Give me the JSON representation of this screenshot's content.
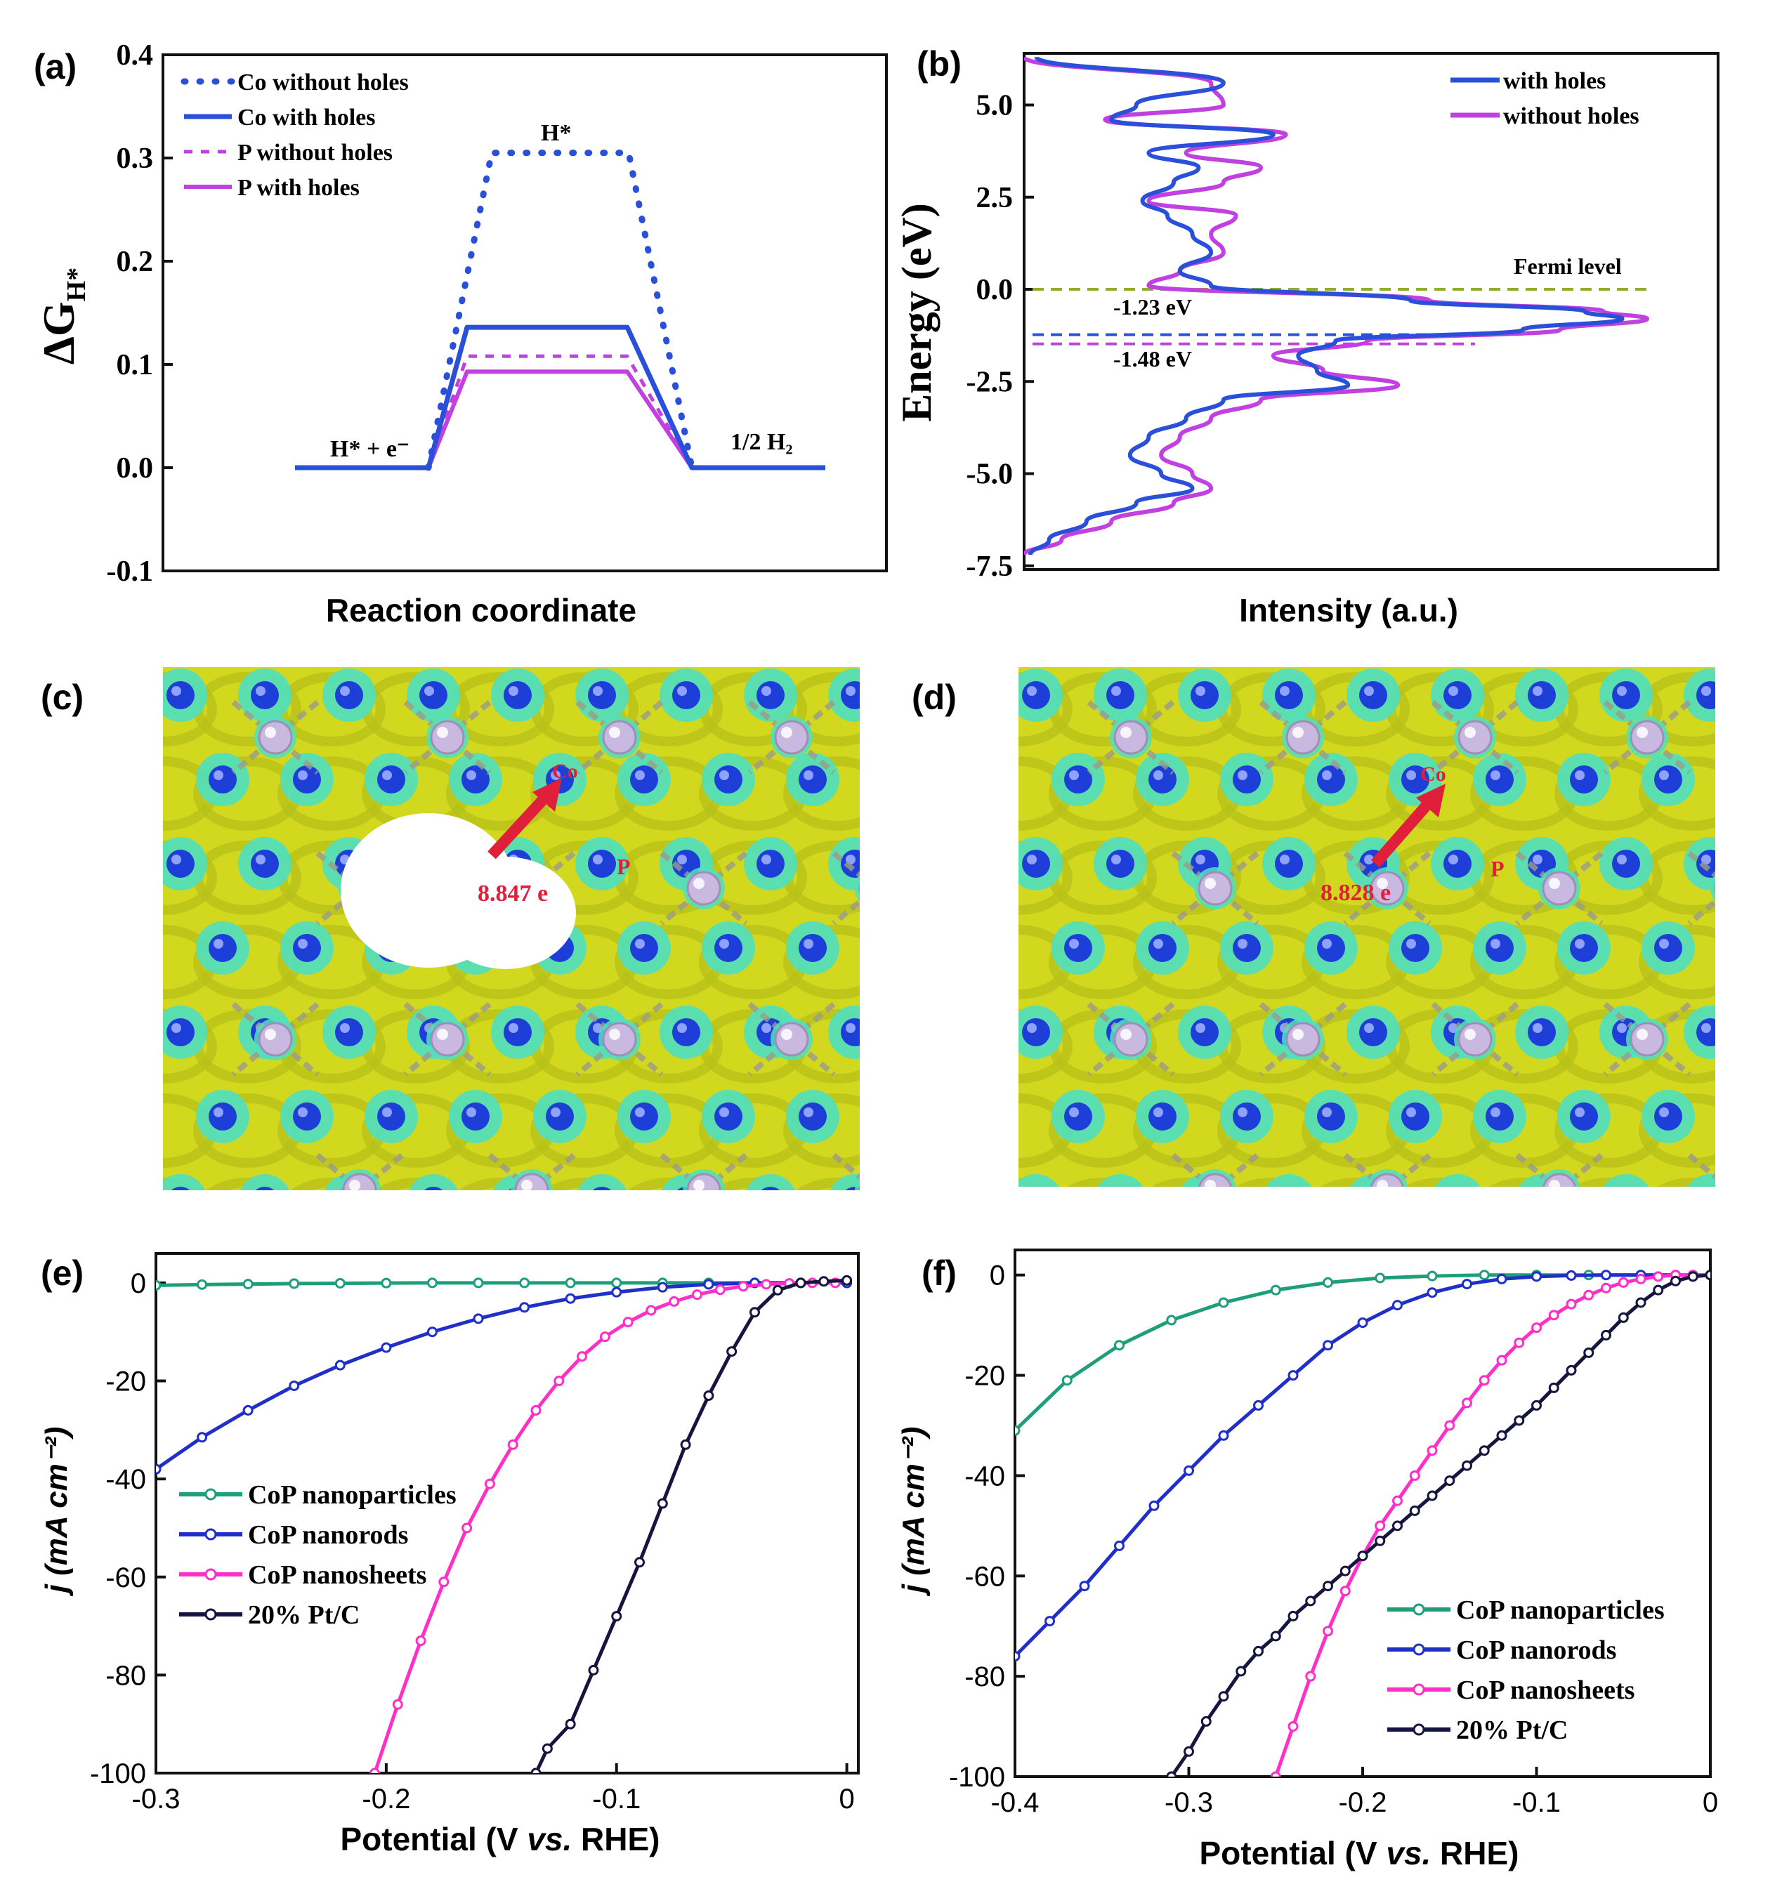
{
  "colors": {
    "co_without": "#2a4fd8",
    "co_with": "#2a4fd8",
    "p_without": "#c040e0",
    "p_with": "#c040e0",
    "dos_with": "#2a4fd8",
    "dos_without": "#c040e0",
    "fermi": "#8fae2c",
    "nanoparticles": "#1f9e7a",
    "nanorods": "#1f2fc8",
    "nanosheets": "#ff2fc8",
    "ptc": "#151540",
    "iso_yellow": "#d2d81e",
    "iso_cyan": "#4fe0c0",
    "atom_blue": "#1e3ed8",
    "atom_p": "#c9b8e0",
    "arrow_red": "#e0203a"
  },
  "chart_data": [
    {
      "panel": "(a)",
      "type": "line",
      "title": "",
      "xlabel": "Reaction coordinate",
      "ylabel_main": "ΔG",
      "ylabel_sub": "H*",
      "ylim": [
        -0.1,
        0.4
      ],
      "yticks": [
        "0.4",
        "0.3",
        "0.2",
        "0.1",
        "0.0",
        "-0.1"
      ],
      "ytick_values": [
        0.4,
        0.3,
        0.2,
        0.1,
        0.0,
        -0.1
      ],
      "stage_labels": [
        "H* + e⁻",
        "H*",
        "1/2 H₂"
      ],
      "series": [
        {
          "name": "Co without holes",
          "style": "dotted",
          "values": [
            0,
            0.305,
            0
          ]
        },
        {
          "name": "Co with holes",
          "style": "solid",
          "values": [
            0,
            0.136,
            0
          ]
        },
        {
          "name": "P without holes",
          "style": "dashed",
          "values": [
            0,
            0.108,
            0
          ]
        },
        {
          "name": "P with holes",
          "style": "solid",
          "values": [
            0,
            0.093,
            0
          ]
        }
      ]
    },
    {
      "panel": "(b)",
      "type": "line",
      "title": "",
      "xlabel": "Intensity (a.u.)",
      "ylabel": "Energy (eV)",
      "ylim": [
        -7.6,
        6.4
      ],
      "yticks": [
        "5.0",
        "2.5",
        "0.0",
        "-2.5",
        "-5.0",
        "-7.5"
      ],
      "ytick_values": [
        5.0,
        2.5,
        0.0,
        -2.5,
        -5.0,
        -7.5
      ],
      "fermi_label": "Fermi level",
      "level_labels": [
        "-1.23 eV",
        "-1.48 eV"
      ],
      "level_values": [
        -1.23,
        -1.48
      ],
      "energy": [
        6.3,
        5.6,
        5.0,
        4.6,
        4.2,
        3.7,
        3.3,
        2.9,
        2.4,
        2.0,
        1.5,
        1.0,
        0.5,
        0.1,
        -0.3,
        -0.6,
        -0.8,
        -1.1,
        -1.4,
        -1.8,
        -2.2,
        -2.6,
        -3.0,
        -3.5,
        -4.0,
        -4.5,
        -5.0,
        -5.4,
        -5.8,
        -6.3,
        -6.8,
        -7.2
      ],
      "series": [
        {
          "name": "with holes",
          "values": [
            0.02,
            0.32,
            0.18,
            0.14,
            0.4,
            0.2,
            0.28,
            0.24,
            0.19,
            0.23,
            0.27,
            0.3,
            0.25,
            0.3,
            0.62,
            0.9,
            0.96,
            0.8,
            0.5,
            0.44,
            0.47,
            0.52,
            0.32,
            0.26,
            0.2,
            0.17,
            0.22,
            0.27,
            0.18,
            0.1,
            0.04,
            0.01
          ]
        },
        {
          "name": "without holes",
          "values": [
            0.0,
            0.3,
            0.32,
            0.13,
            0.42,
            0.26,
            0.38,
            0.32,
            0.2,
            0.34,
            0.3,
            0.32,
            0.25,
            0.2,
            0.65,
            0.93,
            1.0,
            0.86,
            0.55,
            0.4,
            0.48,
            0.6,
            0.38,
            0.3,
            0.25,
            0.22,
            0.27,
            0.3,
            0.24,
            0.14,
            0.06,
            0.0
          ]
        }
      ]
    },
    {
      "panel": "(e)",
      "type": "line",
      "title": "",
      "xlabel_parts": [
        "Potential (V ",
        "vs.",
        " RHE)"
      ],
      "ylabel": "j (mA cm⁻²)",
      "xlim": [
        -0.3,
        0.005
      ],
      "ylim": [
        -100,
        6
      ],
      "xticks": [
        "-0.3",
        "-0.2",
        "-0.1",
        "0"
      ],
      "xtick_values": [
        -0.3,
        -0.2,
        -0.1,
        0.0
      ],
      "yticks": [
        "0",
        "-20",
        "-40",
        "-60",
        "-80",
        "-100"
      ],
      "ytick_values": [
        0,
        -20,
        -40,
        -60,
        -80,
        -100
      ],
      "series": [
        {
          "name": "CoP nanoparticles",
          "x": [
            -0.3,
            -0.28,
            -0.26,
            -0.24,
            -0.22,
            -0.2,
            -0.18,
            -0.16,
            -0.14,
            -0.12,
            -0.1,
            -0.08,
            -0.06,
            -0.04,
            -0.02,
            0.0
          ],
          "y": [
            -0.5,
            -0.35,
            -0.25,
            -0.15,
            -0.08,
            -0.04,
            0,
            0,
            0,
            0,
            0,
            0,
            0,
            0,
            0,
            0
          ]
        },
        {
          "name": "CoP nanorods",
          "x": [
            -0.3,
            -0.28,
            -0.26,
            -0.24,
            -0.22,
            -0.2,
            -0.18,
            -0.16,
            -0.14,
            -0.12,
            -0.1,
            -0.08,
            -0.06,
            -0.04,
            -0.02,
            0.0
          ],
          "y": [
            -38,
            -31.5,
            -26,
            -21,
            -16.8,
            -13.2,
            -10,
            -7.3,
            -5,
            -3.2,
            -1.9,
            -0.9,
            -0.3,
            0,
            0,
            0
          ]
        },
        {
          "name": "CoP nanosheets",
          "x": [
            -0.205,
            -0.195,
            -0.185,
            -0.175,
            -0.165,
            -0.155,
            -0.145,
            -0.135,
            -0.125,
            -0.115,
            -0.105,
            -0.095,
            -0.085,
            -0.075,
            -0.065,
            -0.055,
            -0.045,
            -0.035,
            -0.025,
            -0.015,
            -0.005
          ],
          "y": [
            -100,
            -86,
            -73,
            -61,
            -50,
            -41,
            -33,
            -26,
            -20,
            -15,
            -11,
            -8,
            -5.6,
            -3.8,
            -2.4,
            -1.4,
            -0.7,
            -0.3,
            -0.1,
            0,
            0
          ]
        },
        {
          "name": "20% Pt/C",
          "x": [
            -0.135,
            -0.13,
            -0.12,
            -0.11,
            -0.1,
            -0.09,
            -0.08,
            -0.07,
            -0.06,
            -0.05,
            -0.04,
            -0.03,
            -0.02,
            -0.01,
            0.0
          ],
          "y": [
            -100,
            -95,
            -90,
            -79,
            -68,
            -57,
            -45,
            -33,
            -23,
            -14,
            -6,
            -1.5,
            0,
            0.3,
            0.5
          ]
        }
      ]
    },
    {
      "panel": "(f)",
      "type": "line",
      "title": "",
      "xlabel_parts": [
        "Potential (V ",
        "vs.",
        " RHE)"
      ],
      "ylabel": "j (mA cm⁻²)",
      "xlim": [
        -0.4,
        0.0
      ],
      "ylim": [
        -100,
        5
      ],
      "xticks": [
        "-0.4",
        "-0.3",
        "-0.2",
        "-0.1",
        "0"
      ],
      "xtick_values": [
        -0.4,
        -0.3,
        -0.2,
        -0.1,
        0.0
      ],
      "yticks": [
        "0",
        "-20",
        "-40",
        "-60",
        "-80",
        "-100"
      ],
      "ytick_values": [
        0,
        -20,
        -40,
        -60,
        -80,
        -100
      ],
      "series": [
        {
          "name": "CoP nanoparticles",
          "x": [
            -0.4,
            -0.37,
            -0.34,
            -0.31,
            -0.28,
            -0.25,
            -0.22,
            -0.19,
            -0.16,
            -0.13,
            -0.1,
            -0.07,
            -0.04,
            -0.01
          ],
          "y": [
            -31,
            -21,
            -14,
            -9,
            -5.5,
            -3,
            -1.5,
            -0.6,
            -0.2,
            0,
            0,
            0,
            0,
            0
          ]
        },
        {
          "name": "CoP nanorods",
          "x": [
            -0.4,
            -0.38,
            -0.36,
            -0.34,
            -0.32,
            -0.3,
            -0.28,
            -0.26,
            -0.24,
            -0.22,
            -0.2,
            -0.18,
            -0.16,
            -0.14,
            -0.12,
            -0.1,
            -0.08,
            -0.06,
            -0.04,
            -0.02,
            0.0
          ],
          "y": [
            -76,
            -69,
            -62,
            -54,
            -46,
            -39,
            -32,
            -26,
            -20,
            -14,
            -9.5,
            -6,
            -3.5,
            -1.8,
            -0.8,
            -0.3,
            -0.1,
            0,
            0,
            0,
            0
          ]
        },
        {
          "name": "CoP nanosheets",
          "x": [
            -0.25,
            -0.24,
            -0.23,
            -0.22,
            -0.21,
            -0.2,
            -0.19,
            -0.18,
            -0.17,
            -0.16,
            -0.15,
            -0.14,
            -0.13,
            -0.12,
            -0.11,
            -0.1,
            -0.09,
            -0.08,
            -0.07,
            -0.06,
            -0.05,
            -0.04,
            -0.03,
            -0.02,
            -0.01,
            0.0
          ],
          "y": [
            -100,
            -90,
            -80,
            -71,
            -63,
            -56,
            -50,
            -45,
            -40,
            -35,
            -30,
            -25.5,
            -21,
            -17,
            -13.5,
            -10.5,
            -8,
            -5.8,
            -4,
            -2.6,
            -1.5,
            -0.8,
            -0.3,
            0,
            0,
            0
          ]
        },
        {
          "name": "20% Pt/C",
          "x": [
            -0.31,
            -0.3,
            -0.29,
            -0.28,
            -0.27,
            -0.26,
            -0.25,
            -0.24,
            -0.23,
            -0.22,
            -0.21,
            -0.2,
            -0.19,
            -0.18,
            -0.17,
            -0.16,
            -0.15,
            -0.14,
            -0.13,
            -0.12,
            -0.11,
            -0.1,
            -0.09,
            -0.08,
            -0.07,
            -0.06,
            -0.05,
            -0.04,
            -0.03,
            -0.02,
            -0.01,
            0.0
          ],
          "y": [
            -100,
            -95,
            -89,
            -84,
            -79,
            -75,
            -72,
            -68,
            -65,
            -62,
            -59,
            -56,
            -53,
            -50,
            -47,
            -44,
            -41,
            -38,
            -35,
            -32,
            -29,
            -26,
            -22.5,
            -19,
            -15.5,
            -12,
            -8.5,
            -5.5,
            -3,
            -1.2,
            -0.3,
            0
          ]
        }
      ]
    }
  ],
  "panel_labels": [
    "(a)",
    "(b)",
    "(c)",
    "(d)",
    "(e)",
    "(f)"
  ],
  "structure_c": {
    "atom_label": "Co",
    "p_label": "P",
    "charge": "8.847 e"
  },
  "structure_d": {
    "atom_label": "Co",
    "p_label": "P",
    "charge": "8.828 e"
  }
}
